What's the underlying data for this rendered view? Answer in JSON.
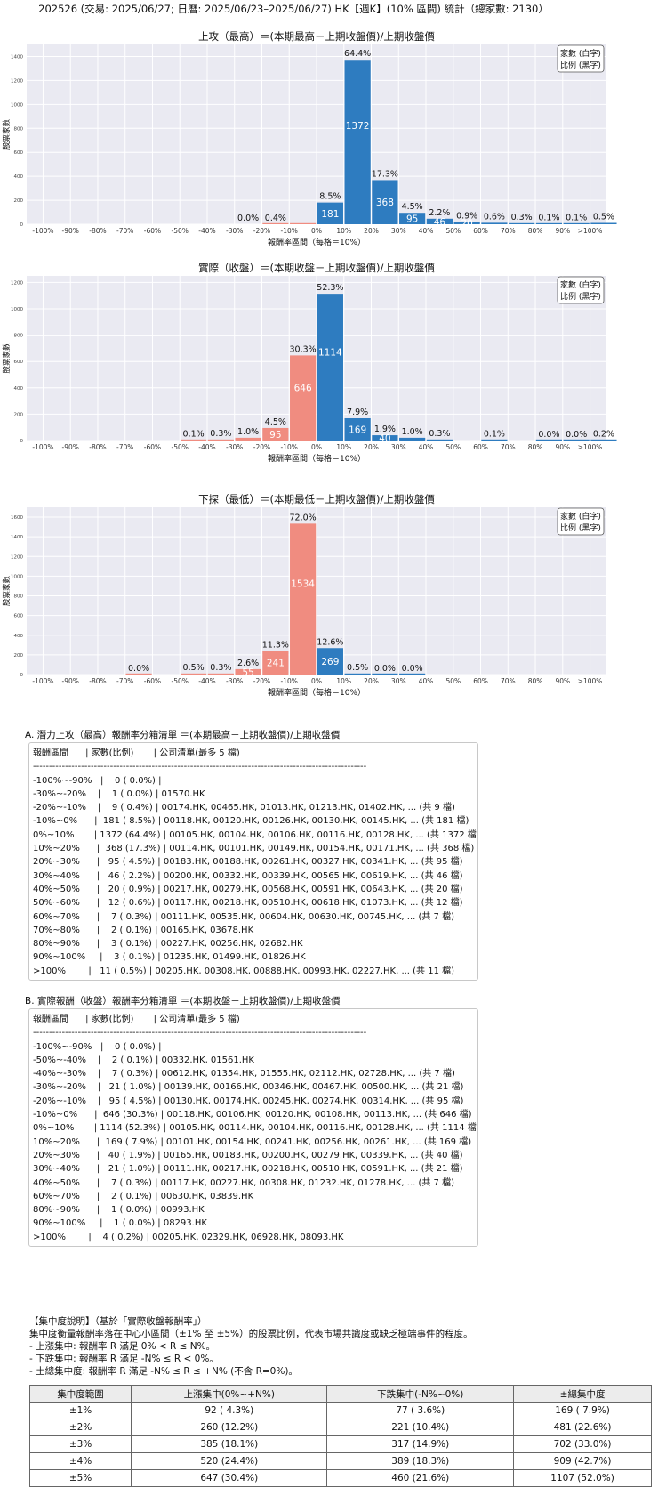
{
  "page_title": "202526 (交易: 2025/06/27; 日曆: 2025/06/23–2025/06/27) HK【週K】(10% 區間) 統計（總家數: 2130）",
  "colors": {
    "neg": "#f08c80",
    "pos": "#2e7cc0",
    "plot_bg": "#eaeaf2",
    "grid": "#ffffff"
  },
  "chart_data": [
    {
      "type": "bar",
      "title": "上攻（最高）＝(本期最高－上期收盤價)/上期收盤價",
      "xlabel": "報酬率區間（每格＝10%）",
      "ylabel": "股票家數",
      "legend": {
        "line1": "家數 (白字)",
        "line2": "比例 (黑字)",
        "position": "top-right"
      },
      "ylim": [
        0,
        1500
      ],
      "yticks": [
        0,
        200,
        400,
        600,
        800,
        1000,
        1200,
        1400
      ],
      "categories": [
        "-100%",
        "-90%",
        "-80%",
        "-70%",
        "-60%",
        "-50%",
        "-40%",
        "-30%",
        "-20%",
        "-10%",
        "0%",
        "10%",
        "20%",
        "30%",
        "40%",
        "50%",
        "60%",
        "70%",
        "80%",
        "90%",
        ">100%"
      ],
      "values": [
        0,
        0,
        0,
        0,
        0,
        0,
        0,
        0,
        1,
        9,
        181,
        1372,
        368,
        95,
        46,
        20,
        12,
        7,
        2,
        3,
        11
      ],
      "pct_labels": [
        "",
        "",
        "",
        "",
        "",
        "",
        "",
        "0.0%",
        "0.4%",
        "",
        "8.5%",
        "64.4%",
        "17.3%",
        "4.5%",
        "2.2%",
        "0.9%",
        "0.6%",
        "0.3%",
        "0.1%",
        "0.1%",
        "0.5%"
      ],
      "count_labels": [
        "",
        "",
        "",
        "",
        "",
        "",
        "",
        "",
        "",
        "",
        "181",
        "1372",
        "368",
        "95",
        "46",
        "20",
        "",
        "",
        "",
        "",
        ""
      ]
    },
    {
      "type": "bar",
      "title": "實際（收盤）＝(本期收盤－上期收盤價)/上期收盤價",
      "xlabel": "報酬率區間（每格＝10%）",
      "ylabel": "股票家數",
      "legend": {
        "line1": "家數 (白字)",
        "line2": "比例 (黑字)",
        "position": "top-right"
      },
      "ylim": [
        0,
        1250
      ],
      "yticks": [
        0,
        200,
        400,
        600,
        800,
        1000,
        1200
      ],
      "categories": [
        "-100%",
        "-90%",
        "-80%",
        "-70%",
        "-60%",
        "-50%",
        "-40%",
        "-30%",
        "-20%",
        "-10%",
        "0%",
        "10%",
        "20%",
        "30%",
        "40%",
        "50%",
        "60%",
        "70%",
        "80%",
        "90%",
        ">100%"
      ],
      "values": [
        0,
        0,
        0,
        0,
        0,
        2,
        7,
        21,
        95,
        646,
        1114,
        169,
        40,
        21,
        7,
        0,
        2,
        0,
        1,
        1,
        4
      ],
      "pct_labels": [
        "",
        "",
        "",
        "",
        "",
        "0.1%",
        "0.3%",
        "1.0%",
        "4.5%",
        "30.3%",
        "52.3%",
        "7.9%",
        "1.9%",
        "1.0%",
        "0.3%",
        "",
        "0.1%",
        "",
        "0.0%",
        "0.0%",
        "0.2%"
      ],
      "count_labels": [
        "",
        "",
        "",
        "",
        "",
        "",
        "",
        "",
        "95",
        "646",
        "1114",
        "169",
        "40",
        "",
        "",
        "",
        "",
        "",
        "",
        "",
        ""
      ]
    },
    {
      "type": "bar",
      "title": "下探（最低）＝(本期最低－上期收盤價)/上期收盤價",
      "xlabel": "報酬率區間（每格＝10%）",
      "ylabel": "股票家數",
      "legend": {
        "line1": "家數 (白字)",
        "line2": "比例 (黑字)",
        "position": "top-right"
      },
      "ylim": [
        0,
        1700
      ],
      "yticks": [
        0,
        200,
        400,
        600,
        800,
        1000,
        1200,
        1400,
        1600
      ],
      "categories": [
        "-100%",
        "-90%",
        "-80%",
        "-70%",
        "-60%",
        "-50%",
        "-40%",
        "-30%",
        "-20%",
        "-10%",
        "0%",
        "10%",
        "20%",
        "30%",
        "40%",
        "50%",
        "60%",
        "70%",
        "80%",
        "90%",
        ">100%"
      ],
      "values": [
        0,
        0,
        0,
        1,
        0,
        10,
        7,
        55,
        241,
        1534,
        269,
        11,
        1,
        1,
        0,
        0,
        0,
        0,
        0,
        0,
        0
      ],
      "pct_labels": [
        "",
        "",
        "",
        "0.0%",
        "",
        "0.5%",
        "0.3%",
        "2.6%",
        "11.3%",
        "72.0%",
        "12.6%",
        "0.5%",
        "0.0%",
        "0.0%",
        "",
        "",
        "",
        "",
        "",
        "",
        ""
      ],
      "count_labels": [
        "",
        "",
        "",
        "",
        "",
        "",
        "",
        "55",
        "241",
        "1534",
        "269",
        "",
        "",
        "",
        "",
        "",
        "",
        "",
        "",
        "",
        ""
      ]
    }
  ],
  "section_a": {
    "title": "A. 潛力上攻（最高）報酬率分箱清單 ＝(本期最高－上期收盤價)/上期收盤價",
    "lines": [
      "報酬區間      | 家數(比例)       | 公司清單(最多 5 檔)",
      "--------------------------------------------------------------------------------------------------------",
      "-100%~-90%   |    0 ( 0.0%) |",
      "-30%~-20%    |    1 ( 0.0%) | 01570.HK",
      "-20%~-10%    |    9 ( 0.4%) | 00174.HK, 00465.HK, 01013.HK, 01213.HK, 01402.HK, ... (共 9 檔)",
      "-10%~0%      |  181 ( 8.5%) | 00118.HK, 00120.HK, 00126.HK, 00130.HK, 00145.HK, ... (共 181 檔)",
      "0%~10%       | 1372 (64.4%) | 00105.HK, 00104.HK, 00106.HK, 00116.HK, 00128.HK, ... (共 1372 檔)",
      "10%~20%      |  368 (17.3%) | 00114.HK, 00101.HK, 00149.HK, 00154.HK, 00171.HK, ... (共 368 檔)",
      "20%~30%      |   95 ( 4.5%) | 00183.HK, 00188.HK, 00261.HK, 00327.HK, 00341.HK, ... (共 95 檔)",
      "30%~40%      |   46 ( 2.2%) | 00200.HK, 00332.HK, 00339.HK, 00565.HK, 00619.HK, ... (共 46 檔)",
      "40%~50%      |   20 ( 0.9%) | 00217.HK, 00279.HK, 00568.HK, 00591.HK, 00643.HK, ... (共 20 檔)",
      "50%~60%      |   12 ( 0.6%) | 00117.HK, 00218.HK, 00510.HK, 00618.HK, 01073.HK, ... (共 12 檔)",
      "60%~70%      |    7 ( 0.3%) | 00111.HK, 00535.HK, 00604.HK, 00630.HK, 00745.HK, ... (共 7 檔)",
      "70%~80%      |    2 ( 0.1%) | 00165.HK, 03678.HK",
      "80%~90%      |    3 ( 0.1%) | 00227.HK, 00256.HK, 02682.HK",
      "90%~100%     |    3 ( 0.1%) | 01235.HK, 01499.HK, 01826.HK",
      ">100%        |   11 ( 0.5%) | 00205.HK, 00308.HK, 00888.HK, 00993.HK, 02227.HK, ... (共 11 檔)"
    ]
  },
  "section_b": {
    "title": "B. 實際報酬（收盤）報酬率分箱清單 ＝(本期收盤－上期收盤價)/上期收盤價",
    "lines": [
      "報酬區間      | 家數(比例)       | 公司清單(最多 5 檔)",
      "--------------------------------------------------------------------------------------------------------",
      "-100%~-90%   |    0 ( 0.0%) |",
      "-50%~-40%    |    2 ( 0.1%) | 00332.HK, 01561.HK",
      "-40%~-30%    |    7 ( 0.3%) | 00612.HK, 01354.HK, 01555.HK, 02112.HK, 02728.HK, ... (共 7 檔)",
      "-30%~-20%    |   21 ( 1.0%) | 00139.HK, 00166.HK, 00346.HK, 00467.HK, 00500.HK, ... (共 21 檔)",
      "-20%~-10%    |   95 ( 4.5%) | 00130.HK, 00174.HK, 00245.HK, 00274.HK, 00314.HK, ... (共 95 檔)",
      "-10%~0%      |  646 (30.3%) | 00118.HK, 00106.HK, 00120.HK, 00108.HK, 00113.HK, ... (共 646 檔)",
      "0%~10%       | 1114 (52.3%) | 00105.HK, 00114.HK, 00104.HK, 00116.HK, 00128.HK, ... (共 1114 檔)",
      "10%~20%      |  169 ( 7.9%) | 00101.HK, 00154.HK, 00241.HK, 00256.HK, 00261.HK, ... (共 169 檔)",
      "20%~30%      |   40 ( 1.9%) | 00165.HK, 00183.HK, 00200.HK, 00279.HK, 00339.HK, ... (共 40 檔)",
      "30%~40%      |   21 ( 1.0%) | 00111.HK, 00217.HK, 00218.HK, 00510.HK, 00591.HK, ... (共 21 檔)",
      "40%~50%      |    7 ( 0.3%) | 00117.HK, 00227.HK, 00308.HK, 01232.HK, 01278.HK, ... (共 7 檔)",
      "60%~70%      |    2 ( 0.1%) | 00630.HK, 03839.HK",
      "80%~90%      |    1 ( 0.0%) | 00993.HK",
      "90%~100%     |    1 ( 0.0%) | 08293.HK",
      ">100%        |    4 ( 0.2%) | 00205.HK, 02329.HK, 06928.HK, 08093.HK"
    ]
  },
  "concentration": {
    "heading": "【集中度說明】（基於「實際收盤報酬率」）",
    "desc": "集中度衡量報酬率落在中心小區間（±1% 至 ±5%）的股票比例，代表市場共識度或缺乏極端事件的程度。",
    "bullets": [
      " - 上漲集中: 報酬率 R 滿足 0% < R ≤ N%。",
      " - 下跌集中: 報酬率 R 滿足 -N% ≤ R < 0%。",
      " - 土總集中度: 報酬率 R 滿足 -N% ≤ R ≤ +N% (不含 R=0%)。"
    ],
    "table": {
      "headers": [
        "集中度範圍",
        "上漲集中(0%~+N%)",
        "下跌集中(-N%~0%)",
        "±總集中度"
      ],
      "rows": [
        [
          "±1%",
          "92 ( 4.3%)",
          "77 ( 3.6%)",
          "169 ( 7.9%)"
        ],
        [
          "±2%",
          "260 (12.2%)",
          "221 (10.4%)",
          "481 (22.6%)"
        ],
        [
          "±3%",
          "385 (18.1%)",
          "317 (14.9%)",
          "702 (33.0%)"
        ],
        [
          "±4%",
          "520 (24.4%)",
          "389 (18.3%)",
          "909 (42.7%)"
        ],
        [
          "±5%",
          "647 (30.4%)",
          "460 (21.6%)",
          "1107 (52.0%)"
        ]
      ]
    }
  }
}
